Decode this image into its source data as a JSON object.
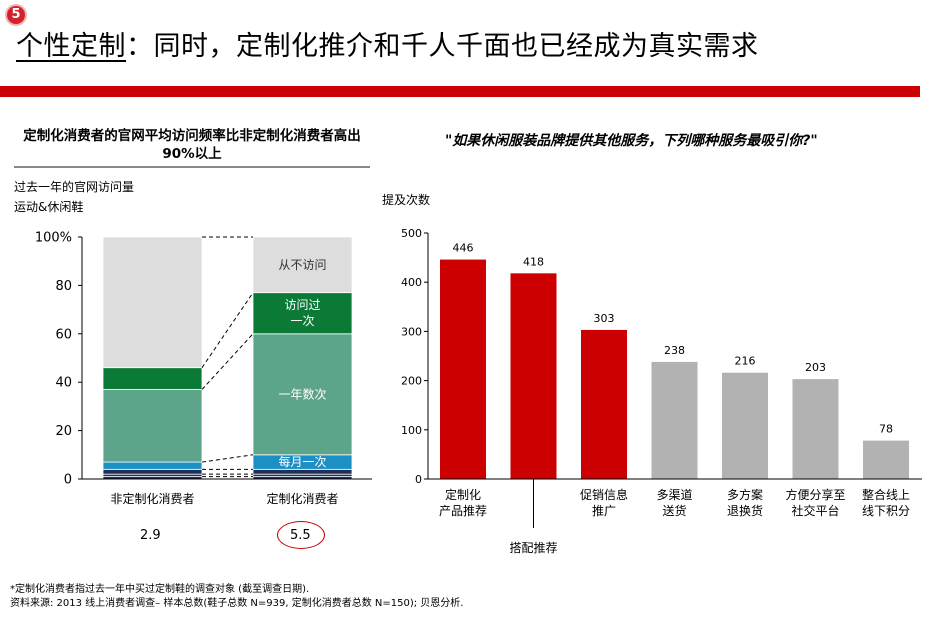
{
  "page": {
    "badge": "5",
    "title_part1": "个性定制",
    "title_part2": "：同时，定制化推介和千人千面也已经成为真实需求"
  },
  "colors": {
    "brand_red": "#cc0000",
    "highlight_red": "#cc0000",
    "gray_bar": "#b2b2b2",
    "never_visit": "#dddddd",
    "visited_once": "#0b7a37",
    "several_times": "#5da58a",
    "monthly": "#1d8fc5",
    "dark_navy": "#1e2f5a"
  },
  "left_panel": {
    "heading": "定制化消费者的官网平均访问频率比非定制化消费者高出90%以上",
    "subtitle1": "过去一年的官网访问量",
    "subtitle2": "运动&休闲鞋",
    "stat_labels": [
      "2.9",
      "5.5"
    ]
  },
  "right_panel": {
    "heading": "\"如果休闲服装品牌提供其他服务，下列哪种服务最吸引你?\"",
    "ylabel": "提及次数"
  },
  "chart_data": [
    {
      "type": "bar",
      "stacked": true,
      "categories": [
        "非定制化消费者",
        "定制化消费者"
      ],
      "yticks": [
        "0",
        "20",
        "40",
        "60",
        "80",
        "100%"
      ],
      "ylim": [
        0,
        100
      ],
      "series": [
        {
          "name": "",
          "color": "dark_navy",
          "values": [
            1,
            1
          ]
        },
        {
          "name": "",
          "color": "dark_navy",
          "values": [
            1,
            1
          ]
        },
        {
          "name": "",
          "color": "dark_navy",
          "values": [
            2,
            2
          ]
        },
        {
          "name": "每月一次",
          "color": "monthly",
          "values": [
            3,
            6
          ]
        },
        {
          "name": "一年数次",
          "color": "several_times",
          "values": [
            30,
            50
          ]
        },
        {
          "name": "访问过一次",
          "color": "visited_once",
          "values": [
            9,
            17
          ]
        },
        {
          "name": "从不访问",
          "color": "never_visit",
          "values": [
            54,
            23
          ]
        }
      ],
      "segment_labels": [
        "每月一次",
        "一年数次",
        "访问过一次",
        "从不访问"
      ]
    },
    {
      "type": "bar",
      "categories": [
        "定制化产品推荐",
        "搭配推荐",
        "促销信息推广",
        "多渠道送货",
        "多方案退换货",
        "方便分享至社交平台",
        "整合线上线下积分"
      ],
      "category_labels": [
        [
          "定制化",
          "产品推荐"
        ],
        [
          "搭配推荐"
        ],
        [
          "促销信息",
          "推广"
        ],
        [
          "多渠道",
          "送货"
        ],
        [
          "多方案",
          "退换货"
        ],
        [
          "方便分享至",
          "社交平台"
        ],
        [
          "整合线上",
          "线下积分"
        ]
      ],
      "values": [
        446,
        418,
        303,
        238,
        216,
        203,
        78
      ],
      "highlight": [
        true,
        true,
        true,
        false,
        false,
        false,
        false
      ],
      "yticks": [
        "0",
        "100",
        "200",
        "300",
        "400",
        "500"
      ],
      "ylim": [
        0,
        500
      ]
    }
  ],
  "footnote": {
    "line1": "*定制化消费者指过去一年中买过定制鞋的调查对象 (截至调查日期).",
    "line2": "资料来源: 2013 线上消费者调查– 样本总数(鞋子总数 N=939, 定制化消费者总数 N=150); 贝恩分析."
  }
}
